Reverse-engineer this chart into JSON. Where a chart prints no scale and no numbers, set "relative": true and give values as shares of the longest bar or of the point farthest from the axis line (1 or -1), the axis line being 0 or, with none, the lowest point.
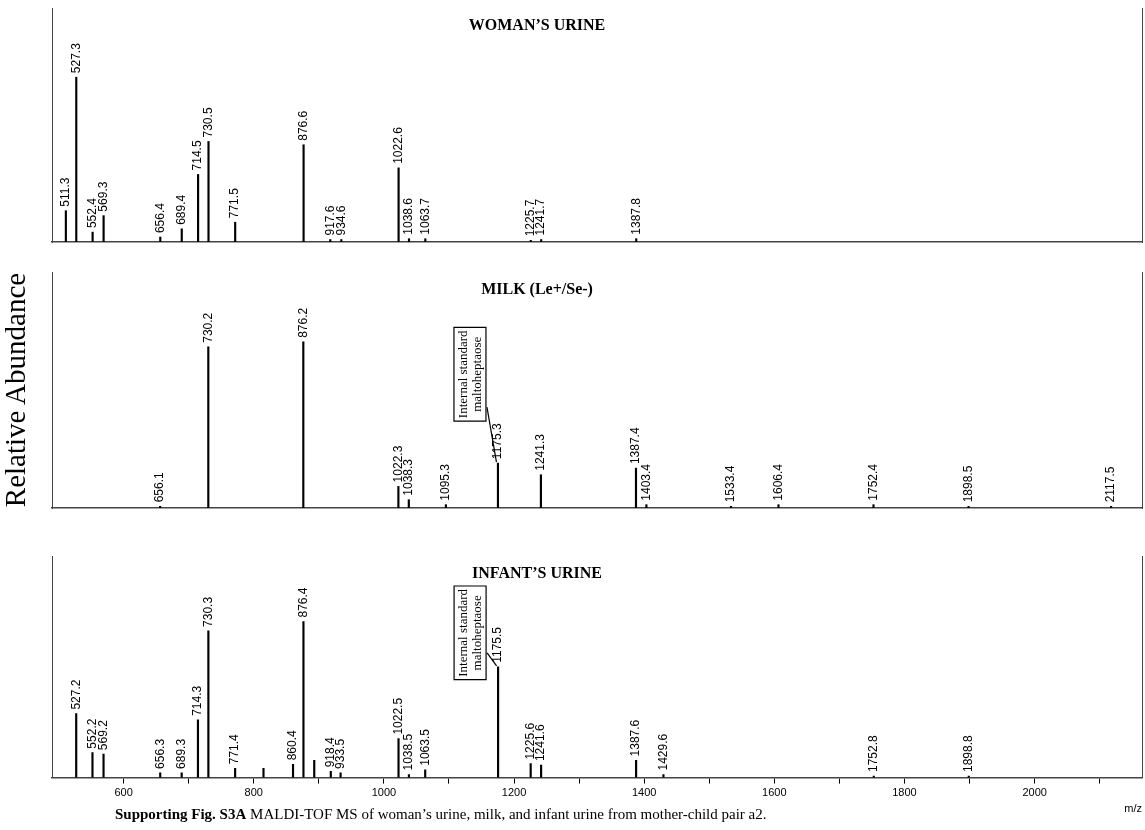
{
  "chart_data": [
    {
      "type": "bar",
      "title": "WOMAN’S URINE",
      "relative": true,
      "color": "#000000",
      "grid": false,
      "tick_labels": false,
      "xlim": [
        490,
        2165
      ],
      "x": [
        511.3,
        527.3,
        552.4,
        569.3,
        656.4,
        689.4,
        714.5,
        730.5,
        771.5,
        876.6,
        917.6,
        934.6,
        1022.6,
        1038.6,
        1063.7,
        1225.7,
        1241.7,
        1387.8
      ],
      "values": [
        0.19,
        1,
        0.06,
        0.16,
        0.03,
        0.08,
        0.41,
        0.61,
        0.12,
        0.59,
        0.015,
        0.015,
        0.45,
        0.02,
        0.02,
        0.01,
        0.015,
        0.02
      ],
      "annotations": [
        {
          "text": "511.3",
          "x": 511.3,
          "y": 0.19
        },
        {
          "text": "527.3",
          "x": 527.3,
          "y": 1
        },
        {
          "text": "552.4",
          "x": 552.4,
          "y": 0.06
        },
        {
          "text": "569.3",
          "x": 569.3,
          "y": 0.16
        },
        {
          "text": "656.4",
          "x": 656.4,
          "y": 0.03
        },
        {
          "text": "689.4",
          "x": 689.4,
          "y": 0.08
        },
        {
          "text": "714.5",
          "x": 714.5,
          "y": 0.41
        },
        {
          "text": "730.5",
          "x": 730.5,
          "y": 0.61
        },
        {
          "text": "771.5",
          "x": 771.5,
          "y": 0.12
        },
        {
          "text": "876.6",
          "x": 876.6,
          "y": 0.59
        },
        {
          "text": "917.6",
          "x": 917.6,
          "y": 0.015
        },
        {
          "text": "934.6",
          "x": 934.6,
          "y": 0.015
        },
        {
          "text": "1022.6",
          "x": 1022.6,
          "y": 0.45
        },
        {
          "text": "1038.6",
          "x": 1038.6,
          "y": 0.02
        },
        {
          "text": "1063.7",
          "x": 1063.7,
          "y": 0.02
        },
        {
          "text": "1225.7",
          "x": 1225.7,
          "y": 0.01
        },
        {
          "text": "1241.7",
          "x": 1241.7,
          "y": 0.015
        },
        {
          "text": "1387.8",
          "x": 1387.8,
          "y": 0.02
        }
      ]
    },
    {
      "type": "bar",
      "title": "MILK (Le+/Se-)",
      "ylabel": "Relative Abundance",
      "relative": true,
      "color": "#000000",
      "grid": false,
      "tick_labels": false,
      "xlim": [
        490,
        2165
      ],
      "x": [
        656.1,
        730.2,
        876.2,
        1022.3,
        1038.3,
        1095.3,
        1175.3,
        1241.3,
        1387.4,
        1403.4,
        1533.4,
        1606.4,
        1752.4,
        1898.5,
        2117.5
      ],
      "values": [
        0.01,
        0.97,
        1,
        0.13,
        0.05,
        0.02,
        0.27,
        0.2,
        0.24,
        0.02,
        0.01,
        0.02,
        0.02,
        0.01,
        0.01
      ],
      "annotations": [
        {
          "text": "656.1",
          "x": 656.1,
          "y": 0.01
        },
        {
          "text": "730.2",
          "x": 730.2,
          "y": 0.97
        },
        {
          "text": "876.2",
          "x": 876.2,
          "y": 1
        },
        {
          "text": "1022.3",
          "x": 1022.3,
          "y": 0.13
        },
        {
          "text": "1038.3",
          "x": 1038.3,
          "y": 0.05
        },
        {
          "text": "1095.3",
          "x": 1095.3,
          "y": 0.02
        },
        {
          "text": "1175.3",
          "x": 1175.3,
          "y": 0.27
        },
        {
          "text": "Internal standard maltoheptaose",
          "x": 1175.3,
          "y": 0.27
        },
        {
          "text": "1241.3",
          "x": 1241.3,
          "y": 0.2
        },
        {
          "text": "1387.4",
          "x": 1387.4,
          "y": 0.24
        },
        {
          "text": "1403.4",
          "x": 1403.4,
          "y": 0.02
        },
        {
          "text": "1533.4",
          "x": 1533.4,
          "y": 0.01
        },
        {
          "text": "1606.4",
          "x": 1606.4,
          "y": 0.02
        },
        {
          "text": "1752.4",
          "x": 1752.4,
          "y": 0.02
        },
        {
          "text": "1898.5",
          "x": 1898.5,
          "y": 0.01
        },
        {
          "text": "2117.5",
          "x": 2117.5,
          "y": 0.01
        }
      ]
    },
    {
      "type": "bar",
      "title": "INFANT’S URINE",
      "xlabel": "m/z",
      "relative": true,
      "color": "#000000",
      "grid": false,
      "tick_labels": "x",
      "xlim": [
        490,
        2165
      ],
      "xticks": [
        600,
        {
          "value": 700,
          "label": null
        },
        800,
        {
          "value": 900,
          "label": null
        },
        1000,
        {
          "value": 1100,
          "label": null
        },
        1200,
        {
          "value": 1300,
          "label": null
        },
        1400,
        {
          "value": 1500,
          "label": null
        },
        1600,
        {
          "value": 1700,
          "label": null
        },
        1800,
        {
          "value": 1900,
          "label": null
        },
        2000,
        {
          "value": 2100,
          "label": null
        }
      ],
      "x": [
        527.2,
        552.2,
        569.2,
        656.3,
        689.3,
        714.3,
        730.3,
        771.4,
        815,
        860.4,
        876.4,
        893,
        918.4,
        933.5,
        1022.5,
        1038.5,
        1063.5,
        1175.5,
        1225.6,
        1241.6,
        1387.6,
        1429.6,
        1752.8,
        1898.8
      ],
      "values": [
        0.41,
        0.16,
        0.15,
        0.03,
        0.03,
        0.37,
        0.94,
        0.06,
        0.06,
        0.085,
        1,
        0.11,
        0.04,
        0.03,
        0.25,
        0.02,
        0.05,
        0.71,
        0.09,
        0.08,
        0.11,
        0.02,
        0.01,
        0.01
      ],
      "annotations": [
        {
          "text": "527.2",
          "x": 527.2,
          "y": 0.41
        },
        {
          "text": "552.2",
          "x": 552.2,
          "y": 0.16
        },
        {
          "text": "569.2",
          "x": 569.2,
          "y": 0.15
        },
        {
          "text": "656.3",
          "x": 656.3,
          "y": 0.03
        },
        {
          "text": "689.3",
          "x": 689.3,
          "y": 0.03
        },
        {
          "text": "714.3",
          "x": 714.3,
          "y": 0.37
        },
        {
          "text": "730.3",
          "x": 730.3,
          "y": 0.94
        },
        {
          "text": "771.4",
          "x": 771.4,
          "y": 0.06
        },
        {
          "text": "860.4",
          "x": 860.4,
          "y": 0.085
        },
        {
          "text": "876.4",
          "x": 876.4,
          "y": 1
        },
        {
          "text": "918.4",
          "x": 918.4,
          "y": 0.04
        },
        {
          "text": "933.5",
          "x": 933.5,
          "y": 0.03
        },
        {
          "text": "1022.5",
          "x": 1022.5,
          "y": 0.25
        },
        {
          "text": "1038.5",
          "x": 1038.5,
          "y": 0.02
        },
        {
          "text": "1063.5",
          "x": 1063.5,
          "y": 0.05
        },
        {
          "text": "1175.5",
          "x": 1175.5,
          "y": 0.71
        },
        {
          "text": "Internal standard maltoheptaose",
          "x": 1175.5,
          "y": 0.71
        },
        {
          "text": "1225.6",
          "x": 1225.6,
          "y": 0.09
        },
        {
          "text": "1241.6",
          "x": 1241.6,
          "y": 0.08
        },
        {
          "text": "1387.6",
          "x": 1387.6,
          "y": 0.11
        },
        {
          "text": "1429.6",
          "x": 1429.6,
          "y": 0.02
        },
        {
          "text": "1752.8",
          "x": 1752.8,
          "y": 0.01
        },
        {
          "text": "1898.8",
          "x": 1898.8,
          "y": 0.01
        },
        "Supporting Fig. S3A",
        "MALDI-TOF MS of woman’s urine, milk, and infant urine from mother-child pair a2."
      ]
    }
  ]
}
